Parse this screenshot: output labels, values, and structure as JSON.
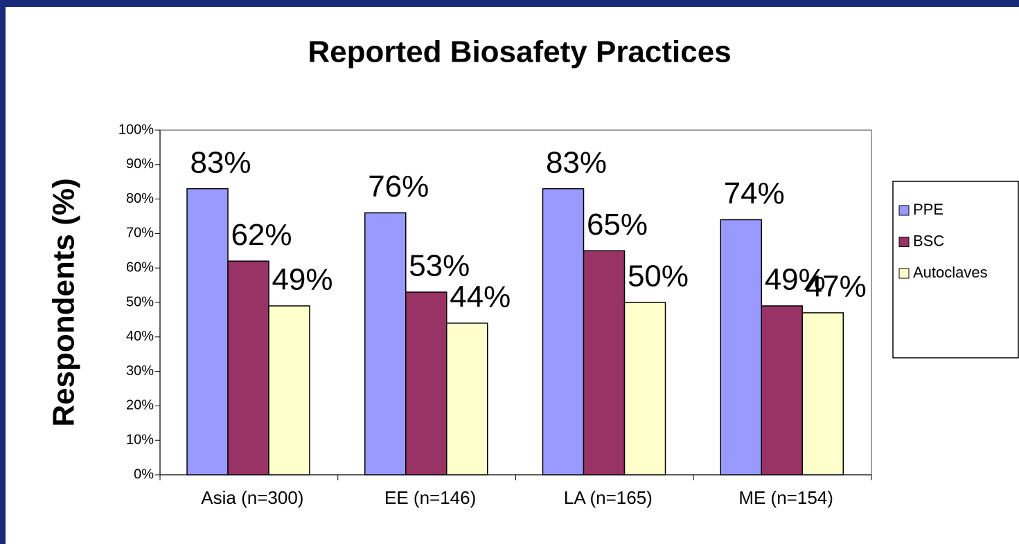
{
  "chart_data": {
    "type": "bar",
    "title": "Reported Biosafety Practices",
    "y_label": "Respondents (%)",
    "categories": [
      "Asia (n=300)",
      "EE (n=146)",
      "LA (n=165)",
      "ME (n=154)"
    ],
    "series": [
      {
        "name": "PPE",
        "color": "#9999ff",
        "values": [
          83,
          76,
          83,
          74
        ],
        "value_labels": [
          "83%",
          "76%",
          "83%",
          "74%"
        ]
      },
      {
        "name": "BSC",
        "color": "#993366",
        "values": [
          62,
          53,
          65,
          49
        ],
        "value_labels": [
          "62%",
          "53%",
          "65%",
          "49%"
        ]
      },
      {
        "name": "Autoclaves",
        "color": "#ffffcc",
        "values": [
          49,
          44,
          50,
          47
        ],
        "value_labels": [
          "49%",
          "44%",
          "50%",
          "47%"
        ]
      }
    ],
    "ylim": [
      0,
      100
    ],
    "yticks": [
      {
        "value": 0,
        "label": "0%"
      },
      {
        "value": 10,
        "label": "10%"
      },
      {
        "value": 20,
        "label": "20%"
      },
      {
        "value": 30,
        "label": "30%"
      },
      {
        "value": 40,
        "label": "40%"
      },
      {
        "value": 50,
        "label": "50%"
      },
      {
        "value": 60,
        "label": "60%"
      },
      {
        "value": 70,
        "label": "70%"
      },
      {
        "value": 80,
        "label": "80%"
      },
      {
        "value": 90,
        "label": "90%"
      },
      {
        "value": 100,
        "label": "100%"
      }
    ],
    "legend": "right"
  }
}
